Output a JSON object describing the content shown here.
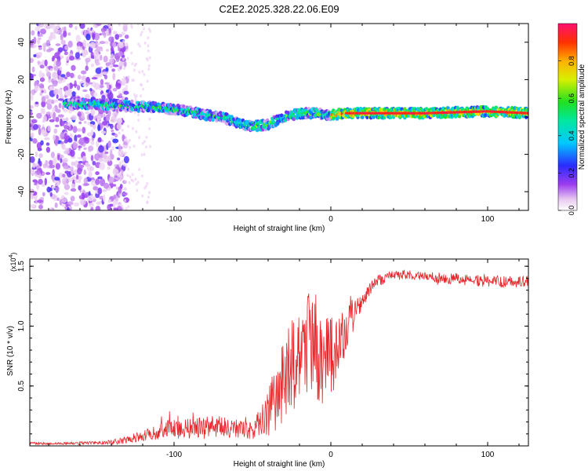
{
  "figure_title": "C2E2.2025.328.22.06.E09",
  "chart_data": [
    {
      "type": "heatmap",
      "title": "C2E2.2025.328.22.06.E09",
      "xlabel": "Height of straight line (km)",
      "ylabel": "Frequency (Hz)",
      "xlim": [
        -192,
        126
      ],
      "ylim": [
        -50,
        50
      ],
      "xticks": [
        -100,
        0,
        100
      ],
      "yticks": [
        -40,
        -20,
        0,
        20,
        40
      ],
      "ridge": {
        "x": [
          -170,
          -150,
          -130,
          -110,
          -100,
          -90,
          -80,
          -70,
          -60,
          -50,
          -40,
          -30,
          -20,
          -10,
          0,
          10,
          20,
          40,
          60,
          80,
          100,
          126
        ],
        "y": [
          7,
          7,
          6,
          5,
          4,
          3,
          1,
          0,
          -3,
          -5,
          -4,
          0,
          2,
          2,
          1,
          2,
          2,
          2,
          2,
          2.5,
          3,
          2
        ]
      },
      "colorbar": {
        "label": "Normalized spectral amplitude",
        "ticks": [
          0.0,
          0.2,
          0.4,
          0.6,
          0.8
        ],
        "range": [
          0,
          1
        ]
      }
    },
    {
      "type": "line",
      "xlabel": "Height of straight line (km)",
      "ylabel": "SNR (10 * v/v)",
      "y_scale_label": "(x10",
      "y_scale_exp": "4",
      "xlim": [
        -192,
        126
      ],
      "ylim": [
        0,
        1.56
      ],
      "xticks": [
        -100,
        0,
        100
      ],
      "yticks": [
        0.5,
        1.0,
        1.5
      ],
      "series": [
        {
          "name": "SNR",
          "color": "#e8252a",
          "x": [
            -192,
            -170,
            -150,
            -140,
            -130,
            -120,
            -110,
            -100,
            -90,
            -80,
            -70,
            -60,
            -55,
            -50,
            -45,
            -40,
            -35,
            -30,
            -25,
            -20,
            -15,
            -10,
            -5,
            0,
            5,
            10,
            15,
            20,
            25,
            30,
            40,
            50,
            60,
            70,
            80,
            90,
            100,
            110,
            126
          ],
          "mean": [
            0.02,
            0.02,
            0.025,
            0.03,
            0.05,
            0.08,
            0.12,
            0.15,
            0.15,
            0.16,
            0.16,
            0.13,
            0.14,
            0.12,
            0.2,
            0.28,
            0.4,
            0.55,
            0.65,
            0.72,
            0.85,
            0.8,
            0.7,
            0.78,
            0.85,
            0.95,
            1.1,
            1.22,
            1.3,
            1.38,
            1.42,
            1.43,
            1.42,
            1.4,
            1.4,
            1.38,
            1.38,
            1.37,
            1.37
          ],
          "noise": [
            0.01,
            0.01,
            0.015,
            0.02,
            0.03,
            0.05,
            0.07,
            0.09,
            0.09,
            0.09,
            0.09,
            0.08,
            0.08,
            0.07,
            0.12,
            0.2,
            0.28,
            0.35,
            0.4,
            0.42,
            0.45,
            0.4,
            0.35,
            0.3,
            0.25,
            0.2,
            0.12,
            0.08,
            0.06,
            0.05,
            0.04,
            0.04,
            0.04,
            0.045,
            0.05,
            0.05,
            0.05,
            0.05,
            0.05
          ]
        }
      ]
    }
  ]
}
